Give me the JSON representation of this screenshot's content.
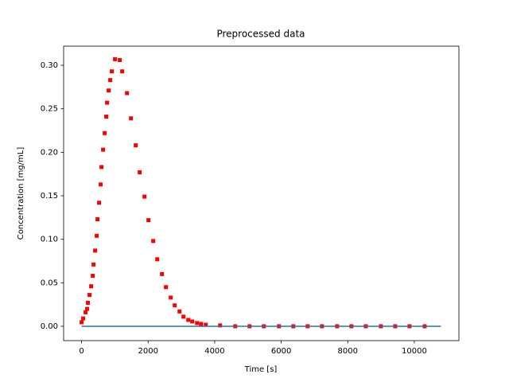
{
  "chart_data": {
    "type": "scatter",
    "title": "Preprocessed data",
    "xlabel": "Time [s]",
    "ylabel": "Concentration [mg/mL]",
    "xlim": [
      -540,
      11340
    ],
    "ylim": [
      -0.0165,
      0.322
    ],
    "xticks": [
      0,
      2000,
      4000,
      6000,
      8000,
      10000
    ],
    "yticks": [
      {
        "value": 0,
        "label": "0.00"
      },
      {
        "value": 0.05,
        "label": "0.05"
      },
      {
        "value": 0.1,
        "label": "0.10"
      },
      {
        "value": 0.15,
        "label": "0.15"
      },
      {
        "value": 0.2,
        "label": "0.20"
      },
      {
        "value": 0.25,
        "label": "0.25"
      },
      {
        "value": 0.3,
        "label": "0.30"
      }
    ],
    "grid": false,
    "series": [
      {
        "style": "marker",
        "color": "#ff0000",
        "x": [
          0,
          48,
          120,
          167,
          191,
          239,
          287,
          335,
          359,
          407,
          455,
          478,
          526,
          574,
          598,
          646,
          694,
          742,
          766,
          813,
          861,
          909,
          1005,
          1148,
          1220,
          1364,
          1483,
          1627,
          1746,
          1890,
          2010,
          2153,
          2273,
          2416,
          2536,
          2679,
          2799,
          2943,
          3062,
          3206,
          3325,
          3469,
          3589,
          3732,
          4163,
          4617,
          5048,
          5478,
          5933,
          6364,
          6794,
          7225,
          7679,
          8110,
          8541,
          8995,
          9426,
          9856,
          10311
        ],
        "values": [
          0.0046,
          0.009,
          0.016,
          0.02,
          0.027,
          0.036,
          0.046,
          0.058,
          0.071,
          0.087,
          0.104,
          0.123,
          0.142,
          0.163,
          0.183,
          0.203,
          0.222,
          0.241,
          0.257,
          0.271,
          0.283,
          0.293,
          0.307,
          0.306,
          0.293,
          0.268,
          0.239,
          0.208,
          0.177,
          0.149,
          0.122,
          0.098,
          0.077,
          0.06,
          0.045,
          0.033,
          0.024,
          0.017,
          0.011,
          0.0073,
          0.0055,
          0.0037,
          0.0027,
          0.0018,
          0.001,
          0,
          0,
          0,
          0,
          0,
          0,
          0,
          0,
          0,
          0,
          0,
          0,
          0,
          0
        ]
      },
      {
        "style": "line",
        "color": "#1f77b4",
        "x": [
          0,
          10800
        ],
        "values": [
          0,
          0
        ]
      }
    ]
  }
}
